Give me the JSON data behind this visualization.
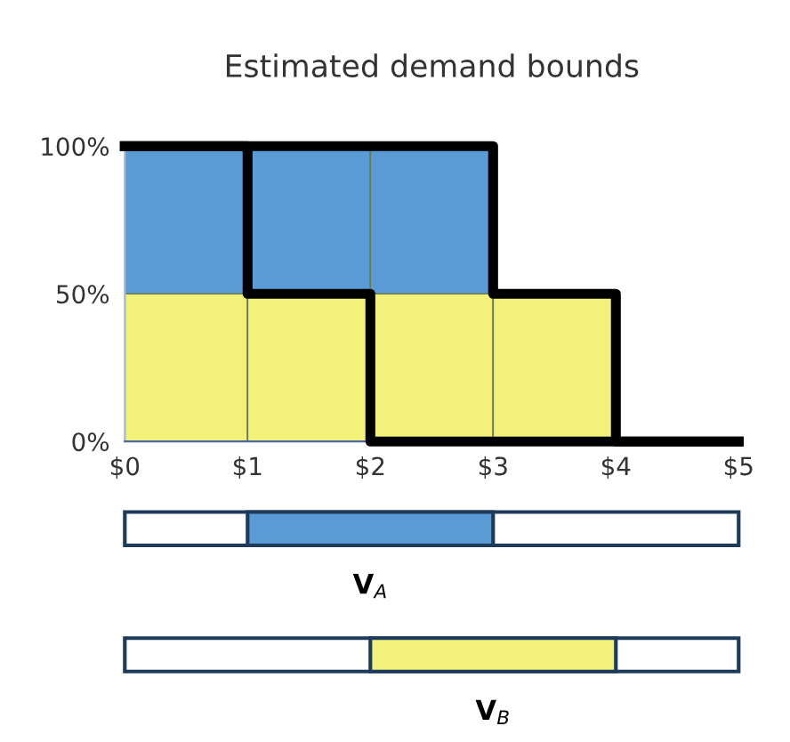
{
  "chart_data": [
    {
      "type": "bar",
      "title": "Estimated demand bounds",
      "stacked": true,
      "x": [
        0.5,
        1.5,
        2.5,
        3.5
      ],
      "series": [
        {
          "color": "#f2f27a",
          "values": [
            50,
            50,
            50,
            50
          ]
        },
        {
          "color": "#5b9bd5",
          "values": [
            50,
            50,
            50,
            null
          ]
        },
        {
          "type": "step",
          "x": [
            0,
            1,
            2,
            3,
            4,
            5
          ],
          "color": "#000000",
          "values": [
            100,
            100,
            100,
            50,
            0,
            0
          ]
        },
        {
          "type": "step",
          "x": [
            0,
            1,
            2,
            3,
            4,
            5
          ],
          "color": "#000000",
          "values": [
            100,
            50,
            0,
            0,
            0,
            0
          ]
        }
      ],
      "xlim": [
        0,
        5
      ],
      "xticks": [
        {
          "value": 0,
          "label": "$0"
        },
        {
          "value": 1,
          "label": "$1"
        },
        {
          "value": 2,
          "label": "$2"
        },
        {
          "value": 3,
          "label": "$3"
        },
        {
          "value": 4,
          "label": "$4"
        },
        {
          "value": 5,
          "label": "$5"
        }
      ],
      "ylim": [
        0,
        100
      ],
      "yticks": [
        {
          "value": 0,
          "label": "0%"
        },
        {
          "value": 50,
          "label": "50%"
        },
        {
          "value": 100,
          "label": "100%"
        }
      ],
      "grid": false,
      "legend": false,
      "annotations": [
        "V$_{A}$",
        "V$_{B}$"
      ]
    }
  ]
}
